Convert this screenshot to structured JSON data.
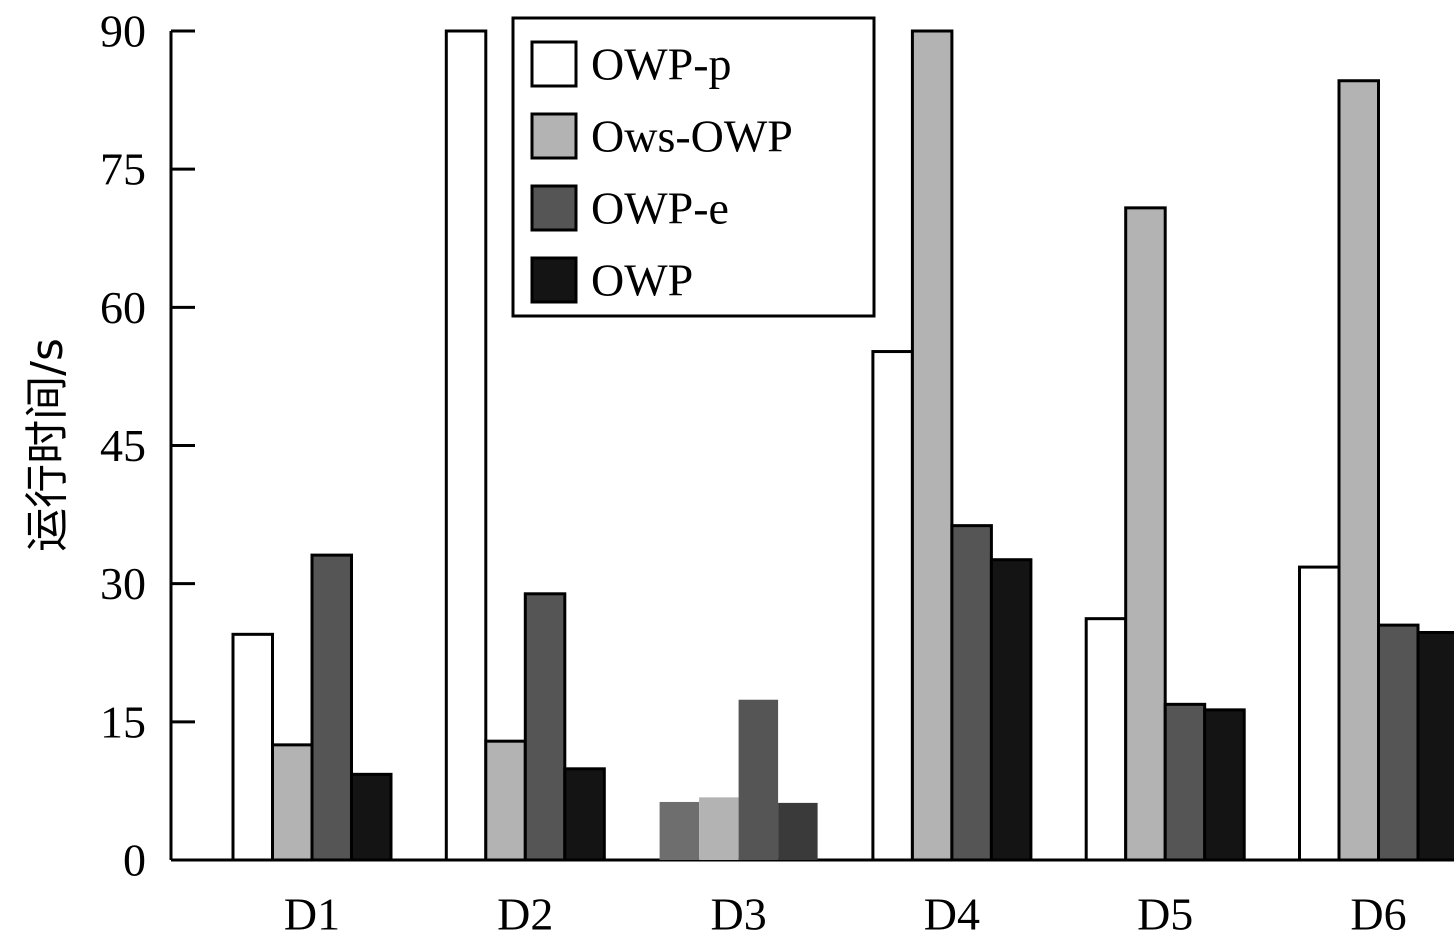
{
  "chart_data": {
    "type": "bar",
    "title": "",
    "xlabel": "",
    "ylabel": "运行时间/s",
    "ylim": [
      0,
      90
    ],
    "yticks": [
      0,
      15,
      30,
      45,
      60,
      75,
      90
    ],
    "grid": false,
    "legend_position": "top-center",
    "categories": [
      "D1",
      "D2",
      "D3",
      "D4",
      "D5",
      "D6"
    ],
    "series": [
      {
        "name": "OWP-p",
        "color": "#ffffff",
        "values": [
          24.5,
          90,
          6.3,
          55.2,
          26.2,
          31.8
        ]
      },
      {
        "name": "Ows-OWP",
        "color": "#b3b3b3",
        "values": [
          12.5,
          12.9,
          6.8,
          90,
          70.8,
          84.6
        ]
      },
      {
        "name": "OWP-e",
        "color": "#555555",
        "values": [
          33.1,
          28.9,
          17.4,
          36.3,
          16.9,
          25.5
        ]
      },
      {
        "name": "OWP",
        "color": "#141414",
        "values": [
          9.3,
          9.9,
          6.2,
          32.6,
          16.3,
          24.7
        ]
      }
    ]
  }
}
